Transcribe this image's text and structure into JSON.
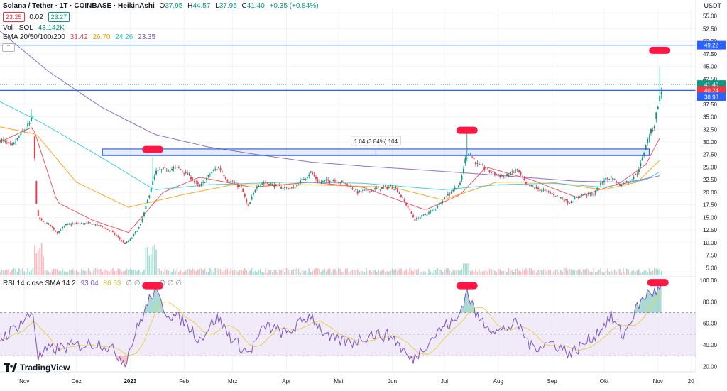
{
  "header": {
    "symbol": "Solana / Tether · 1T · COINBASE · HeikinAshi",
    "ohlc": {
      "o_label": "O",
      "o": "37.95",
      "h_label": "H",
      "h": "44.57",
      "l_label": "L",
      "l": "37.95",
      "c_label": "C",
      "c": "41.40",
      "chg": "+0.35 (+0.84%)"
    },
    "bid": "23.25",
    "spread": "0.02",
    "ask": "23.27",
    "vol_label": "Vol · SOL",
    "vol_value": "43.142K",
    "ema_label": "EMA 20/50/100/200",
    "ema_values": [
      "31.42",
      "26.70",
      "24.26",
      "23.35"
    ],
    "rsi_label": "RSI 14 close SMA 14 2",
    "rsi_values": [
      "93.04",
      "86.53"
    ],
    "rsi_extra": "∅ ∅",
    "rsi_extra2": "∅ ∅ ∅",
    "currency": "USDT",
    "collapse_icon": "⌃"
  },
  "logo": {
    "text": "TradingView"
  },
  "colors": {
    "up": "#089981",
    "down": "#f23645",
    "ema20": "#f23645",
    "ema50": "#ff9800",
    "ema100": "#26c6da",
    "ema200": "#7e57c2",
    "hline": "#2962ff",
    "rsi": "#7e57c2",
    "rsi_ma": "#e8d34a",
    "rsi_band": "#e9e1f7",
    "marker": "#ff1744"
  },
  "chart_data": {
    "type": "candlestick",
    "price_axis": {
      "ticks": [
        "55.00",
        "52.50",
        "50.00",
        "47.50",
        "45.00",
        "42.50",
        "40.00",
        "37.50",
        "35.00",
        "32.50",
        "30.00",
        "27.50",
        "25.00",
        "22.50",
        "20.00",
        "17.50",
        "15.00",
        "12.50",
        "10.00",
        "7.50",
        "5.00"
      ],
      "min": 3.5,
      "max": 56.5
    },
    "rsi_axis": {
      "ticks": [
        "100.00",
        "80.00",
        "60.00",
        "40.00",
        "20.00"
      ],
      "min": 15,
      "max": 102,
      "band": [
        30,
        70
      ]
    },
    "x_axis": {
      "labels": [
        "Nov",
        "Dez",
        "2023",
        "Feb",
        "Mrz",
        "Apr",
        "Mai",
        "Jun",
        "Jul",
        "Aug",
        "Sep",
        "Okt",
        "Nov",
        "20"
      ],
      "start": "2022-10-18",
      "end": "2023-11-24"
    },
    "h_lines": [
      49.22,
      40.24
    ],
    "h_line_labels": [
      "49.22",
      "40.24"
    ],
    "last_price": {
      "value": 41.4,
      "label": "41.40",
      "sub": "18:06:02"
    },
    "low_label": {
      "value": 38.98,
      "label": "38.98"
    },
    "range_box": {
      "low": 27.3,
      "high": 28.6,
      "start": "2022-12-16",
      "end": "2023-10-27",
      "label": "1.04 (3.84%) 104"
    },
    "price_anchors": [
      [
        "2022-10-18",
        30.5
      ],
      [
        "2022-10-25",
        29.0
      ],
      [
        "2022-10-31",
        32.0
      ],
      [
        "2022-11-04",
        33.5
      ],
      [
        "2022-11-06",
        35.0
      ],
      [
        "2022-11-08",
        18.0
      ],
      [
        "2022-11-09",
        15.0
      ],
      [
        "2022-11-12",
        14.0
      ],
      [
        "2022-11-16",
        13.5
      ],
      [
        "2022-11-20",
        12.0
      ],
      [
        "2022-11-25",
        13.5
      ],
      [
        "2022-12-01",
        13.8
      ],
      [
        "2022-12-10",
        13.8
      ],
      [
        "2022-12-16",
        13.2
      ],
      [
        "2022-12-22",
        12.0
      ],
      [
        "2022-12-29",
        9.8
      ],
      [
        "2023-01-01",
        10.5
      ],
      [
        "2023-01-07",
        13.5
      ],
      [
        "2023-01-10",
        17.0
      ],
      [
        "2023-01-13",
        21.0
      ],
      [
        "2023-01-16",
        24.0
      ],
      [
        "2023-01-20",
        24.5
      ],
      [
        "2023-01-29",
        24.8
      ],
      [
        "2023-02-05",
        23.0
      ],
      [
        "2023-02-10",
        21.0
      ],
      [
        "2023-02-17",
        24.0
      ],
      [
        "2023-02-21",
        25.0
      ],
      [
        "2023-02-26",
        22.5
      ],
      [
        "2023-03-06",
        21.0
      ],
      [
        "2023-03-10",
        17.0
      ],
      [
        "2023-03-15",
        21.5
      ],
      [
        "2023-03-20",
        22.0
      ],
      [
        "2023-03-28",
        21.0
      ],
      [
        "2023-04-05",
        20.8
      ],
      [
        "2023-04-15",
        24.0
      ],
      [
        "2023-04-20",
        22.0
      ],
      [
        "2023-04-28",
        22.5
      ],
      [
        "2023-05-05",
        21.8
      ],
      [
        "2023-05-12",
        20.0
      ],
      [
        "2023-05-20",
        20.5
      ],
      [
        "2023-05-28",
        21.0
      ],
      [
        "2023-06-03",
        21.0
      ],
      [
        "2023-06-10",
        17.0
      ],
      [
        "2023-06-14",
        14.5
      ],
      [
        "2023-06-18",
        15.2
      ],
      [
        "2023-06-25",
        16.5
      ],
      [
        "2023-07-01",
        19.0
      ],
      [
        "2023-07-06",
        20.5
      ],
      [
        "2023-07-10",
        21.5
      ],
      [
        "2023-07-13",
        26.5
      ],
      [
        "2023-07-15",
        28.0
      ],
      [
        "2023-07-20",
        25.5
      ],
      [
        "2023-07-28",
        24.0
      ],
      [
        "2023-08-05",
        23.0
      ],
      [
        "2023-08-12",
        24.5
      ],
      [
        "2023-08-17",
        21.5
      ],
      [
        "2023-08-25",
        20.5
      ],
      [
        "2023-09-01",
        19.8
      ],
      [
        "2023-09-11",
        18.0
      ],
      [
        "2023-09-18",
        19.5
      ],
      [
        "2023-09-25",
        19.6
      ],
      [
        "2023-10-01",
        22.5
      ],
      [
        "2023-10-05",
        23.0
      ],
      [
        "2023-10-10",
        21.5
      ],
      [
        "2023-10-15",
        22.2
      ],
      [
        "2023-10-20",
        23.8
      ],
      [
        "2023-10-23",
        26.5
      ],
      [
        "2023-10-25",
        29.5
      ],
      [
        "2023-10-28",
        32.0
      ],
      [
        "2023-10-30",
        33.5
      ],
      [
        "2023-11-01",
        37.5
      ],
      [
        "2023-11-03",
        40.0
      ]
    ],
    "ema_anchors": {
      "ema20": [
        [
          "2022-10-18",
          30.0
        ],
        [
          "2022-11-06",
          33.0
        ],
        [
          "2022-11-20",
          18.0
        ],
        [
          "2022-12-10",
          14.5
        ],
        [
          "2022-12-31",
          12.0
        ],
        [
          "2023-01-20",
          20.0
        ],
        [
          "2023-02-10",
          23.0
        ],
        [
          "2023-03-12",
          21.0
        ],
        [
          "2023-04-15",
          22.0
        ],
        [
          "2023-05-15",
          21.0
        ],
        [
          "2023-06-20",
          16.5
        ],
        [
          "2023-07-10",
          19.5
        ],
        [
          "2023-07-25",
          25.0
        ],
        [
          "2023-08-20",
          22.5
        ],
        [
          "2023-09-15",
          19.0
        ],
        [
          "2023-10-10",
          21.8
        ],
        [
          "2023-10-25",
          25.5
        ],
        [
          "2023-11-03",
          31.42
        ]
      ],
      "ema50": [
        [
          "2022-10-18",
          33.0
        ],
        [
          "2022-11-08",
          31.5
        ],
        [
          "2022-12-01",
          22.0
        ],
        [
          "2022-12-31",
          17.0
        ],
        [
          "2023-01-31",
          19.5
        ],
        [
          "2023-03-01",
          21.5
        ],
        [
          "2023-04-15",
          21.5
        ],
        [
          "2023-06-01",
          21.0
        ],
        [
          "2023-06-30",
          18.5
        ],
        [
          "2023-07-31",
          22.0
        ],
        [
          "2023-08-31",
          22.0
        ],
        [
          "2023-09-30",
          20.5
        ],
        [
          "2023-10-20",
          22.0
        ],
        [
          "2023-11-03",
          26.7
        ]
      ],
      "ema100": [
        [
          "2022-10-18",
          38.0
        ],
        [
          "2022-11-10",
          34.0
        ],
        [
          "2022-12-15",
          27.0
        ],
        [
          "2023-01-15",
          20.5
        ],
        [
          "2023-02-15",
          21.5
        ],
        [
          "2023-04-01",
          22.0
        ],
        [
          "2023-05-15",
          21.8
        ],
        [
          "2023-06-30",
          20.5
        ],
        [
          "2023-08-01",
          21.5
        ],
        [
          "2023-09-01",
          21.8
        ],
        [
          "2023-10-01",
          21.0
        ],
        [
          "2023-10-25",
          22.5
        ],
        [
          "2023-11-03",
          24.26
        ]
      ],
      "ema200": [
        [
          "2022-10-18",
          52.0
        ],
        [
          "2022-11-15",
          44.0
        ],
        [
          "2022-12-15",
          37.0
        ],
        [
          "2023-01-15",
          31.5
        ],
        [
          "2023-02-15",
          29.0
        ],
        [
          "2023-03-15",
          27.5
        ],
        [
          "2023-04-15",
          26.0
        ],
        [
          "2023-05-15",
          25.2
        ],
        [
          "2023-06-15",
          24.5
        ],
        [
          "2023-07-15",
          23.8
        ],
        [
          "2023-08-15",
          23.0
        ],
        [
          "2023-09-15",
          22.2
        ],
        [
          "2023-10-15",
          22.0
        ],
        [
          "2023-11-03",
          23.35
        ]
      ]
    },
    "rsi_anchors": [
      [
        "2022-10-18",
        45
      ],
      [
        "2022-10-28",
        58
      ],
      [
        "2022-11-06",
        70
      ],
      [
        "2022-11-09",
        28
      ],
      [
        "2022-11-14",
        35
      ],
      [
        "2022-11-25",
        38
      ],
      [
        "2022-12-05",
        40
      ],
      [
        "2022-12-15",
        42
      ],
      [
        "2022-12-22",
        35
      ],
      [
        "2022-12-29",
        24
      ],
      [
        "2023-01-05",
        55
      ],
      [
        "2023-01-12",
        82
      ],
      [
        "2023-01-15",
        90
      ],
      [
        "2023-01-22",
        70
      ],
      [
        "2023-02-01",
        62
      ],
      [
        "2023-02-10",
        45
      ],
      [
        "2023-02-20",
        66
      ],
      [
        "2023-03-01",
        45
      ],
      [
        "2023-03-10",
        32
      ],
      [
        "2023-03-20",
        58
      ],
      [
        "2023-04-01",
        50
      ],
      [
        "2023-04-15",
        68
      ],
      [
        "2023-04-25",
        46
      ],
      [
        "2023-05-08",
        42
      ],
      [
        "2023-05-20",
        50
      ],
      [
        "2023-06-01",
        48
      ],
      [
        "2023-06-12",
        25
      ],
      [
        "2023-06-20",
        40
      ],
      [
        "2023-07-01",
        58
      ],
      [
        "2023-07-08",
        62
      ],
      [
        "2023-07-14",
        90
      ],
      [
        "2023-07-20",
        65
      ],
      [
        "2023-08-01",
        52
      ],
      [
        "2023-08-12",
        60
      ],
      [
        "2023-08-20",
        38
      ],
      [
        "2023-09-01",
        42
      ],
      [
        "2023-09-12",
        32
      ],
      [
        "2023-09-25",
        48
      ],
      [
        "2023-10-05",
        66
      ],
      [
        "2023-10-12",
        48
      ],
      [
        "2023-10-20",
        75
      ],
      [
        "2023-10-26",
        88
      ],
      [
        "2023-11-01",
        90
      ],
      [
        "2023-11-03",
        95
      ]
    ],
    "markers": [
      {
        "pane": "price",
        "date": "2023-01-14",
        "value": 28.5
      },
      {
        "pane": "price",
        "date": "2023-07-14",
        "value": 32.3
      },
      {
        "pane": "price",
        "date": "2023-11-02",
        "value": 48.2
      },
      {
        "pane": "rsi",
        "date": "2023-01-14",
        "value": 95
      },
      {
        "pane": "rsi",
        "date": "2023-07-14",
        "value": 95
      },
      {
        "pane": "rsi",
        "date": "2023-11-01",
        "value": 98
      }
    ]
  }
}
